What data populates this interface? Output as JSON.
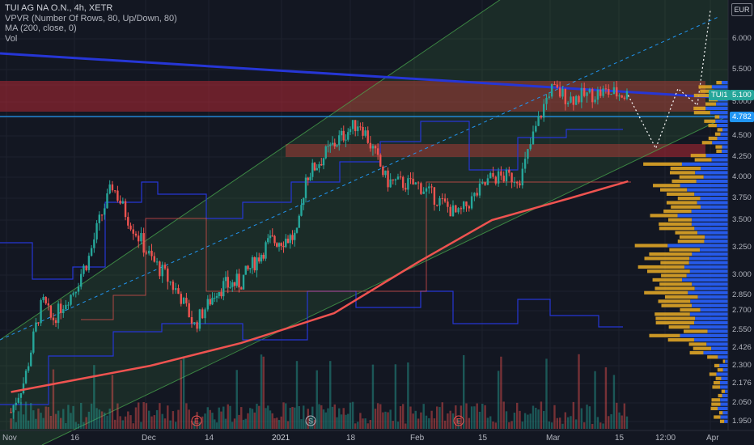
{
  "legend": {
    "title": "TUI AG NA O.N., 4h, XETR",
    "vpvr": "VPVR (Number Of Rows, 80, Up/Down, 80)",
    "ma": "MA (200, close, 0)",
    "vol": "Vol"
  },
  "currency": "EUR",
  "price_labels": {
    "ticker": "TUI1",
    "last": "5.100",
    "hline": "4.782"
  },
  "colors": {
    "background": "#131722",
    "up": "#26a69a",
    "down": "#ef5350",
    "ma": "#ef5350",
    "channel": "#4caf50",
    "vpvr_up": "#2962ff",
    "vpvr_down": "#e0a526",
    "resistance_zone": "#b22833",
    "trendline": "#2636d6",
    "hline": "#2196f3"
  },
  "chart_data": {
    "type": "candlestick",
    "symbol": "TUI AG NA O.N.",
    "interval": "4h",
    "exchange": "XETR",
    "y_ticks": [
      "6.000",
      "5.500",
      "5.000",
      "4.500",
      "4.250",
      "4.000",
      "3.750",
      "3.500",
      "3.250",
      "3.000",
      "2.850",
      "2.700",
      "2.550",
      "2.426",
      "2.300",
      "2.176",
      "2.050",
      "1.950"
    ],
    "y_axis_scale": "log",
    "x_ticks": [
      "Nov",
      "16",
      "Dec",
      "14",
      "2021",
      "18",
      "Feb",
      "15",
      "Mar",
      "15",
      "12:00",
      "Apr"
    ],
    "last_price": 5.1,
    "horizontal_line": 4.782,
    "price_path": [
      {
        "date": "Nov 2",
        "close": 2.0
      },
      {
        "date": "Nov 5",
        "close": 2.2
      },
      {
        "date": "Nov 9",
        "close": 2.8
      },
      {
        "date": "Nov 11",
        "close": 2.62
      },
      {
        "date": "Nov 16",
        "close": 2.9
      },
      {
        "date": "Nov 19",
        "close": 3.15
      },
      {
        "date": "Nov 24",
        "close": 3.9
      },
      {
        "date": "Nov 27",
        "close": 3.55
      },
      {
        "date": "Dec 2",
        "close": 3.15
      },
      {
        "date": "Dec 8",
        "close": 2.85
      },
      {
        "date": "Dec 11",
        "close": 2.58
      },
      {
        "date": "Dec 16",
        "close": 2.9
      },
      {
        "date": "Dec 22",
        "close": 2.95
      },
      {
        "date": "Dec 29",
        "close": 3.3
      },
      {
        "date": "Jan 5",
        "close": 3.35
      },
      {
        "date": "Jan 7",
        "close": 4.0
      },
      {
        "date": "Jan 14",
        "close": 4.4
      },
      {
        "date": "Jan 20",
        "close": 4.7
      },
      {
        "date": "Jan 26",
        "close": 3.95
      },
      {
        "date": "Feb 2",
        "close": 3.9
      },
      {
        "date": "Feb 10",
        "close": 3.55
      },
      {
        "date": "Feb 17",
        "close": 4.0
      },
      {
        "date": "Feb 23",
        "close": 4.0
      },
      {
        "date": "Mar 1",
        "close": 5.2
      },
      {
        "date": "Mar 5",
        "close": 5.05
      },
      {
        "date": "Mar 12",
        "close": 5.15
      },
      {
        "date": "Mar 17",
        "close": 5.1
      }
    ],
    "ma200": [
      {
        "date": "Nov 2",
        "value": 2.12
      },
      {
        "date": "Dec 2",
        "value": 2.3
      },
      {
        "date": "Dec 22",
        "value": 2.46
      },
      {
        "date": "Jan 14",
        "value": 2.68
      },
      {
        "date": "Feb 2",
        "value": 3.12
      },
      {
        "date": "Feb 17",
        "value": 3.5
      },
      {
        "date": "Mar 5",
        "value": 3.75
      },
      {
        "date": "Mar 17",
        "value": 3.95
      }
    ],
    "projection": [
      {
        "date": "Mar 17",
        "value": 5.1
      },
      {
        "date": "Mar 23",
        "value": 4.35
      },
      {
        "date": "Mar 27",
        "value": 5.2
      },
      {
        "date": "Mar 30",
        "value": 4.95
      },
      {
        "date": "Apr 1",
        "value": 6.5
      }
    ],
    "resistance_zones": [
      [
        5.03,
        5.28
      ],
      [
        4.28,
        4.42
      ]
    ],
    "markers": [
      "E",
      "S",
      "E"
    ]
  }
}
